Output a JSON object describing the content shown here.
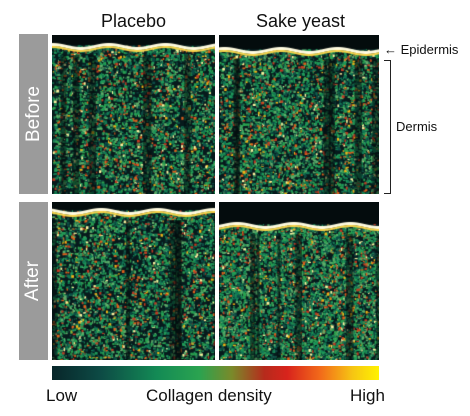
{
  "columns": {
    "left": "Placebo",
    "right": "Sake yeast"
  },
  "rows": {
    "top": "Before",
    "bottom": "After"
  },
  "annotations": {
    "epidermis": "← Epidermis",
    "dermis": "Dermis"
  },
  "scale": {
    "low": "Low",
    "title": "Collagen density",
    "high": "High"
  },
  "colors": {
    "tab": "#9b9b9b",
    "bg": "#071a1c",
    "low": "#0d4b45",
    "mid": "#2aa350",
    "red": "#d8241c",
    "high": "#fff200"
  }
}
